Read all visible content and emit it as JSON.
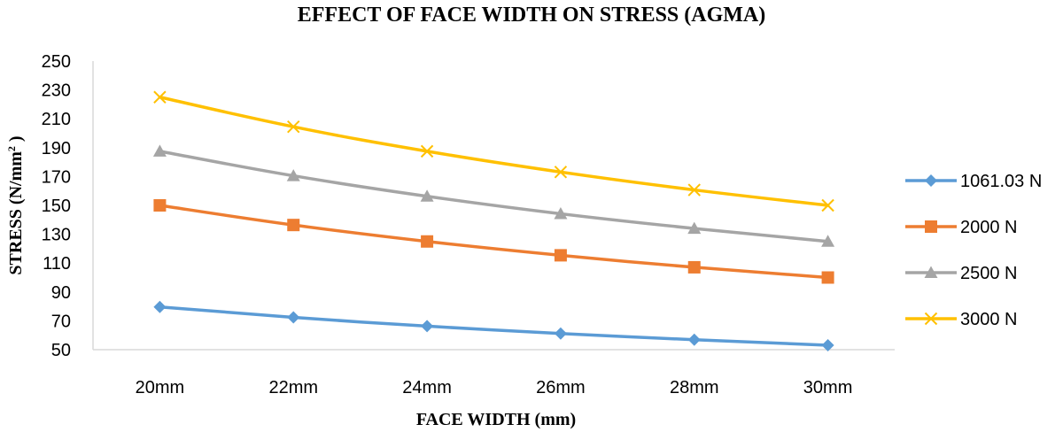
{
  "chart_data": {
    "type": "line",
    "title": "EFFECT OF FACE WIDTH ON STRESS (AGMA)",
    "xlabel": "FACE WIDTH (mm)",
    "ylabel_main": "STRESS (N/mm",
    "ylabel_sup": "2",
    "ylabel_end": " )",
    "categories": [
      "20mm",
      "22mm",
      "24mm",
      "26mm",
      "28mm",
      "30mm"
    ],
    "ylim": [
      50,
      250
    ],
    "yticks": [
      50,
      70,
      90,
      110,
      130,
      150,
      170,
      190,
      210,
      230,
      250
    ],
    "grid": false,
    "legend_position": "right",
    "series": [
      {
        "name": "1061.03 N",
        "color": "#5B9BD5",
        "marker": "diamond",
        "values": [
          79.6,
          72.4,
          66.3,
          61.2,
          56.9,
          53.1
        ]
      },
      {
        "name": "2000 N",
        "color": "#ED7D31",
        "marker": "square",
        "values": [
          150,
          136.4,
          125,
          115.4,
          107.1,
          100
        ]
      },
      {
        "name": "2500 N",
        "color": "#A5A5A5",
        "marker": "triangle",
        "values": [
          187.5,
          170.5,
          156.3,
          144.2,
          134.0,
          125
        ]
      },
      {
        "name": "3000 N",
        "color": "#FFC000",
        "marker": "x",
        "values": [
          225,
          204.5,
          187.5,
          173.1,
          160.7,
          150
        ]
      }
    ]
  }
}
